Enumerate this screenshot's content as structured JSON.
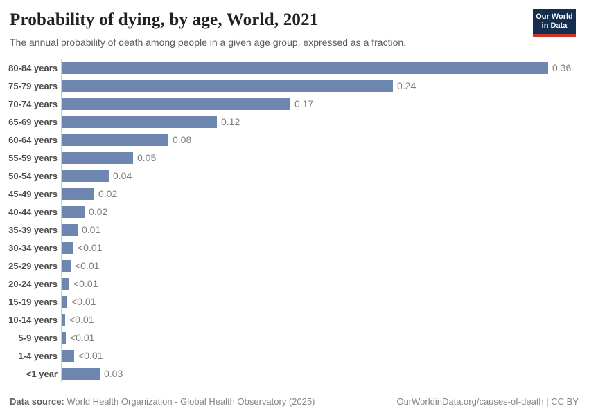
{
  "header": {
    "title": "Probability of dying, by age, World, 2021",
    "subtitle": "The annual probability of death among people in a given age group, expressed as a fraction.",
    "logo": {
      "line1": "Our World",
      "line2": "in Data"
    }
  },
  "chart_data": {
    "type": "bar",
    "orientation": "horizontal",
    "title": "Probability of dying, by age, World, 2021",
    "xlabel": "",
    "ylabel": "",
    "xlim": [
      0,
      0.36
    ],
    "grid": false,
    "legend": false,
    "bar_color": "#6e87b0",
    "axis_line_color": "#cccccc",
    "categories": [
      "80-84 years",
      "75-79 years",
      "70-74 years",
      "65-69 years",
      "60-64 years",
      "55-59 years",
      "50-54 years",
      "45-49 years",
      "40-44 years",
      "35-39 years",
      "30-34 years",
      "25-29 years",
      "20-24 years",
      "15-19 years",
      "10-14 years",
      "5-9 years",
      "1-4 years",
      "<1 year"
    ],
    "values": [
      0.36,
      0.245,
      0.169,
      0.115,
      0.079,
      0.053,
      0.035,
      0.024,
      0.017,
      0.012,
      0.0088,
      0.0067,
      0.0056,
      0.0041,
      0.0026,
      0.0031,
      0.0092,
      0.028
    ],
    "value_labels": [
      "0.36",
      "0.24",
      "0.17",
      "0.12",
      "0.08",
      "0.05",
      "0.04",
      "0.02",
      "0.02",
      "0.01",
      "<0.01",
      "<0.01",
      "<0.01",
      "<0.01",
      "<0.01",
      "<0.01",
      "<0.01",
      "0.03"
    ]
  },
  "footer": {
    "datasource_label": "Data source:",
    "datasource_text": " World Health Organization - Global Health Observatory (2025)",
    "cite_text": "OurWorldinData.org/causes-of-death | CC BY"
  },
  "colors": {
    "bar": "#6e87b0",
    "logo_navy": "#152d4f",
    "logo_red": "#cc3426",
    "title_text": "#222222",
    "subtitle_text": "#5b5b5b",
    "category_label": "#4a4a4a",
    "value_label": "#7d7d7d"
  }
}
